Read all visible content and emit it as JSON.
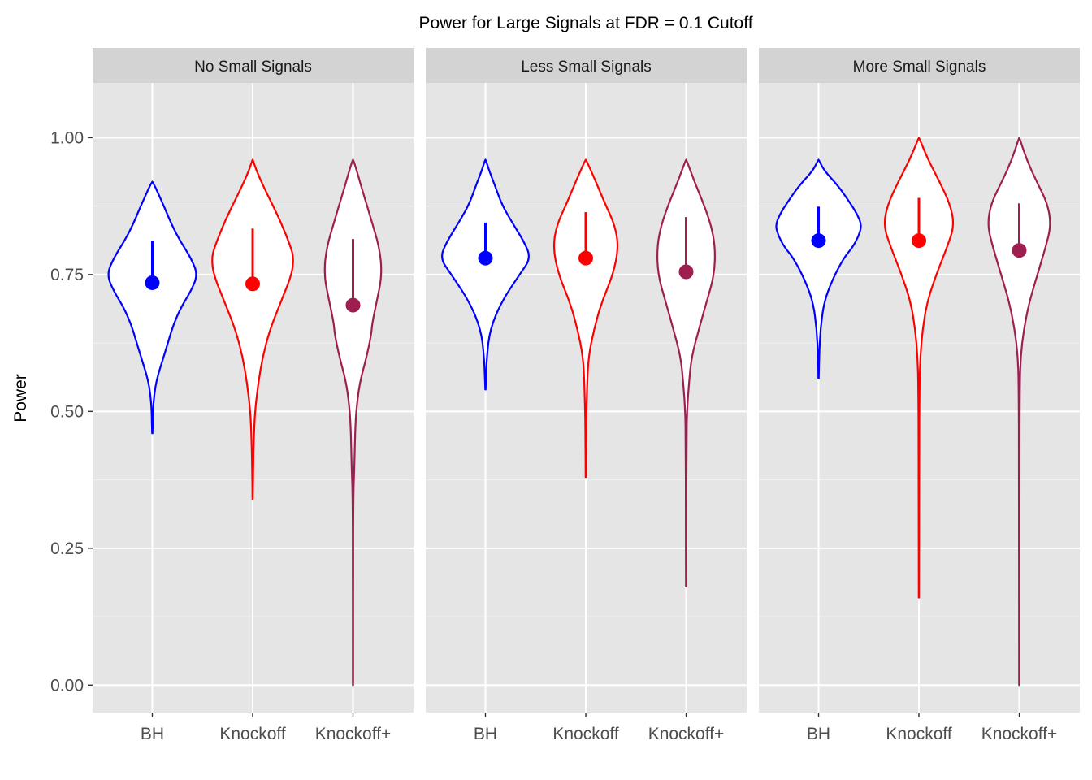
{
  "chart_data": {
    "type": "violin",
    "title": "Power for Large Signals at FDR = 0.1 Cutoff",
    "xlabel": "",
    "ylabel": "Power",
    "ylim": [
      -0.05,
      1.1
    ],
    "yticks": [
      "0.00",
      "0.25",
      "0.50",
      "0.75",
      "1.00"
    ],
    "yticks_values": [
      0,
      0.25,
      0.5,
      0.75,
      1.0
    ],
    "categories": [
      "BH",
      "Knockoff",
      "Knockoff+"
    ],
    "colors": {
      "BH": "#0000ff",
      "Knockoff": "#ff0000",
      "Knockoff+": "#9e1f4f"
    },
    "panel_background": "#e5e5e5",
    "strip_background": "#d3d3d3",
    "grid": true,
    "legend": "none",
    "panels": [
      {
        "label": "No Small Signals",
        "violins": [
          {
            "category": "BH",
            "min": 0.46,
            "max": 0.92,
            "mean": 0.735,
            "upper": 0.812,
            "profile": [
              [
                0.46,
                0.004
              ],
              [
                0.48,
                0.01
              ],
              [
                0.5,
                0.015
              ],
              [
                0.53,
                0.04
              ],
              [
                0.56,
                0.1
              ],
              [
                0.6,
                0.25
              ],
              [
                0.63,
                0.36
              ],
              [
                0.66,
                0.47
              ],
              [
                0.69,
                0.63
              ],
              [
                0.72,
                0.85
              ],
              [
                0.75,
                1.0
              ],
              [
                0.78,
                0.85
              ],
              [
                0.81,
                0.62
              ],
              [
                0.84,
                0.43
              ],
              [
                0.87,
                0.28
              ],
              [
                0.9,
                0.12
              ],
              [
                0.92,
                0.004
              ]
            ]
          },
          {
            "category": "Knockoff",
            "min": 0.34,
            "max": 0.96,
            "mean": 0.733,
            "upper": 0.834,
            "profile": [
              [
                0.34,
                0.004
              ],
              [
                0.4,
                0.012
              ],
              [
                0.45,
                0.025
              ],
              [
                0.5,
                0.05
              ],
              [
                0.55,
                0.12
              ],
              [
                0.6,
                0.22
              ],
              [
                0.65,
                0.38
              ],
              [
                0.7,
                0.62
              ],
              [
                0.75,
                0.86
              ],
              [
                0.78,
                0.9
              ],
              [
                0.8,
                0.84
              ],
              [
                0.85,
                0.6
              ],
              [
                0.9,
                0.3
              ],
              [
                0.94,
                0.08
              ],
              [
                0.96,
                0.004
              ]
            ]
          },
          {
            "category": "Knockoff+",
            "min": 0.0,
            "max": 0.96,
            "mean": 0.694,
            "upper": 0.815,
            "profile": [
              [
                0.0,
                0.004
              ],
              [
                0.2,
                0.004
              ],
              [
                0.35,
                0.008
              ],
              [
                0.4,
                0.03
              ],
              [
                0.47,
                0.05
              ],
              [
                0.5,
                0.07
              ],
              [
                0.55,
                0.14
              ],
              [
                0.6,
                0.3
              ],
              [
                0.64,
                0.4
              ],
              [
                0.66,
                0.42
              ],
              [
                0.7,
                0.52
              ],
              [
                0.75,
                0.64
              ],
              [
                0.8,
                0.58
              ],
              [
                0.85,
                0.4
              ],
              [
                0.9,
                0.22
              ],
              [
                0.94,
                0.08
              ],
              [
                0.96,
                0.004
              ]
            ]
          }
        ]
      },
      {
        "label": "Less Small Signals",
        "violins": [
          {
            "category": "BH",
            "min": 0.54,
            "max": 0.96,
            "mean": 0.78,
            "upper": 0.845,
            "profile": [
              [
                0.54,
                0.004
              ],
              [
                0.56,
                0.012
              ],
              [
                0.6,
                0.03
              ],
              [
                0.65,
                0.1
              ],
              [
                0.7,
                0.35
              ],
              [
                0.75,
                0.75
              ],
              [
                0.78,
                1.0
              ],
              [
                0.81,
                0.85
              ],
              [
                0.85,
                0.55
              ],
              [
                0.88,
                0.35
              ],
              [
                0.91,
                0.22
              ],
              [
                0.94,
                0.08
              ],
              [
                0.96,
                0.004
              ]
            ]
          },
          {
            "category": "Knockoff",
            "min": 0.38,
            "max": 0.96,
            "mean": 0.78,
            "upper": 0.864,
            "profile": [
              [
                0.38,
                0.004
              ],
              [
                0.45,
                0.008
              ],
              [
                0.5,
                0.015
              ],
              [
                0.55,
                0.03
              ],
              [
                0.6,
                0.06
              ],
              [
                0.65,
                0.18
              ],
              [
                0.7,
                0.35
              ],
              [
                0.75,
                0.6
              ],
              [
                0.8,
                0.72
              ],
              [
                0.84,
                0.64
              ],
              [
                0.88,
                0.42
              ],
              [
                0.92,
                0.22
              ],
              [
                0.96,
                0.004
              ]
            ]
          },
          {
            "category": "Knockoff+",
            "min": 0.18,
            "max": 0.96,
            "mean": 0.755,
            "upper": 0.855,
            "profile": [
              [
                0.18,
                0.004
              ],
              [
                0.3,
                0.006
              ],
              [
                0.45,
                0.01
              ],
              [
                0.5,
                0.02
              ],
              [
                0.55,
                0.06
              ],
              [
                0.6,
                0.12
              ],
              [
                0.65,
                0.28
              ],
              [
                0.7,
                0.45
              ],
              [
                0.75,
                0.62
              ],
              [
                0.8,
                0.64
              ],
              [
                0.84,
                0.55
              ],
              [
                0.88,
                0.38
              ],
              [
                0.92,
                0.18
              ],
              [
                0.96,
                0.004
              ]
            ]
          }
        ]
      },
      {
        "label": "More Small Signals",
        "violins": [
          {
            "category": "BH",
            "min": 0.56,
            "max": 0.96,
            "mean": 0.812,
            "upper": 0.874,
            "profile": [
              [
                0.56,
                0.004
              ],
              [
                0.6,
                0.012
              ],
              [
                0.65,
                0.04
              ],
              [
                0.7,
                0.12
              ],
              [
                0.74,
                0.3
              ],
              [
                0.78,
                0.55
              ],
              [
                0.8,
                0.75
              ],
              [
                0.82,
                0.88
              ],
              [
                0.84,
                0.95
              ],
              [
                0.86,
                0.85
              ],
              [
                0.88,
                0.7
              ],
              [
                0.91,
                0.45
              ],
              [
                0.94,
                0.12
              ],
              [
                0.96,
                0.004
              ]
            ]
          },
          {
            "category": "Knockoff",
            "min": 0.16,
            "max": 1.0,
            "mean": 0.812,
            "upper": 0.89,
            "profile": [
              [
                0.16,
                0.004
              ],
              [
                0.4,
                0.006
              ],
              [
                0.55,
                0.012
              ],
              [
                0.6,
                0.03
              ],
              [
                0.65,
                0.08
              ],
              [
                0.7,
                0.18
              ],
              [
                0.75,
                0.38
              ],
              [
                0.8,
                0.62
              ],
              [
                0.84,
                0.78
              ],
              [
                0.88,
                0.68
              ],
              [
                0.92,
                0.45
              ],
              [
                0.96,
                0.2
              ],
              [
                1.0,
                0.004
              ]
            ]
          },
          {
            "category": "Knockoff+",
            "min": 0.0,
            "max": 1.0,
            "mean": 0.794,
            "upper": 0.88,
            "profile": [
              [
                0.0,
                0.004
              ],
              [
                0.4,
                0.006
              ],
              [
                0.55,
                0.012
              ],
              [
                0.6,
                0.03
              ],
              [
                0.65,
                0.1
              ],
              [
                0.7,
                0.22
              ],
              [
                0.75,
                0.4
              ],
              [
                0.8,
                0.58
              ],
              [
                0.84,
                0.7
              ],
              [
                0.88,
                0.62
              ],
              [
                0.92,
                0.38
              ],
              [
                0.96,
                0.16
              ],
              [
                1.0,
                0.004
              ]
            ]
          }
        ]
      }
    ]
  }
}
